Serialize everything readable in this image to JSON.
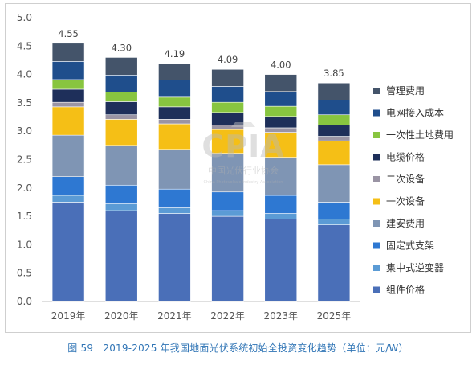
{
  "chart_data": {
    "type": "bar",
    "stacked": true,
    "title": "",
    "caption": "图 59　2019-2025 年我国地面光伏系统初始全投资变化趋势（单位：元/W）",
    "categories": [
      "2019年",
      "2020年",
      "2021年",
      "2022年",
      "2023年",
      "2025年"
    ],
    "totals": [
      "4.55",
      "4.30",
      "4.19",
      "4.09",
      "4.00",
      "3.85"
    ],
    "ylim": [
      0,
      5
    ],
    "yticks": [
      "0.0",
      "0.5",
      "1.0",
      "1.5",
      "2.0",
      "2.5",
      "3.0",
      "3.5",
      "4.0",
      "4.5",
      "5.0"
    ],
    "grid": false,
    "legend_position": "right",
    "series": [
      {
        "name": "组件价格",
        "color": "#4a6fb8",
        "values": [
          1.75,
          1.6,
          1.55,
          1.5,
          1.45,
          1.35
        ]
      },
      {
        "name": "集中式逆变器",
        "color": "#5b9bd5",
        "values": [
          0.12,
          0.12,
          0.1,
          0.1,
          0.1,
          0.1
        ]
      },
      {
        "name": "固定式支架",
        "color": "#2e78d2",
        "values": [
          0.33,
          0.33,
          0.33,
          0.33,
          0.32,
          0.3
        ]
      },
      {
        "name": "建安费用",
        "color": "#7f95b4",
        "values": [
          0.73,
          0.7,
          0.7,
          0.68,
          0.67,
          0.66
        ]
      },
      {
        "name": "一次设备",
        "color": "#f5bf16",
        "values": [
          0.5,
          0.46,
          0.45,
          0.42,
          0.44,
          0.42
        ]
      },
      {
        "name": "二次设备",
        "color": "#9a94a4",
        "values": [
          0.08,
          0.08,
          0.08,
          0.08,
          0.08,
          0.08
        ]
      },
      {
        "name": "电缆价格",
        "color": "#1e2f5a",
        "values": [
          0.23,
          0.23,
          0.22,
          0.22,
          0.2,
          0.2
        ]
      },
      {
        "name": "一次性土地费用",
        "color": "#88c540",
        "values": [
          0.17,
          0.17,
          0.17,
          0.18,
          0.18,
          0.18
        ]
      },
      {
        "name": "电网接入成本",
        "color": "#1f4e8c",
        "values": [
          0.32,
          0.3,
          0.3,
          0.28,
          0.26,
          0.26
        ]
      },
      {
        "name": "管理费用",
        "color": "#44546a",
        "values": [
          0.32,
          0.31,
          0.29,
          0.3,
          0.3,
          0.3
        ]
      }
    ]
  },
  "watermark": {
    "main": "CPIA",
    "cn": "中国光伏行业协会",
    "en": "China Photovoltaic Industry Association"
  }
}
